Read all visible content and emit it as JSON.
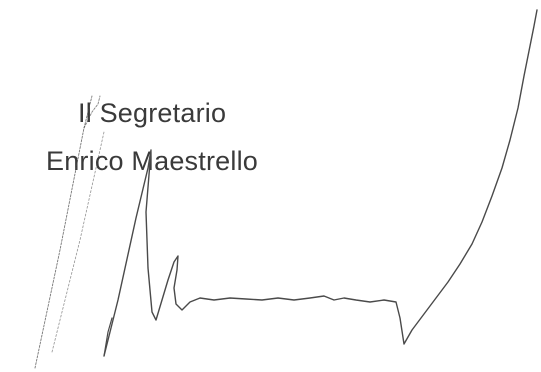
{
  "signatory": {
    "role": "Il Segretario",
    "name": "Enrico Maestrello"
  },
  "signature": {
    "type": "handwritten",
    "ink_color": "#4a4a4a"
  }
}
